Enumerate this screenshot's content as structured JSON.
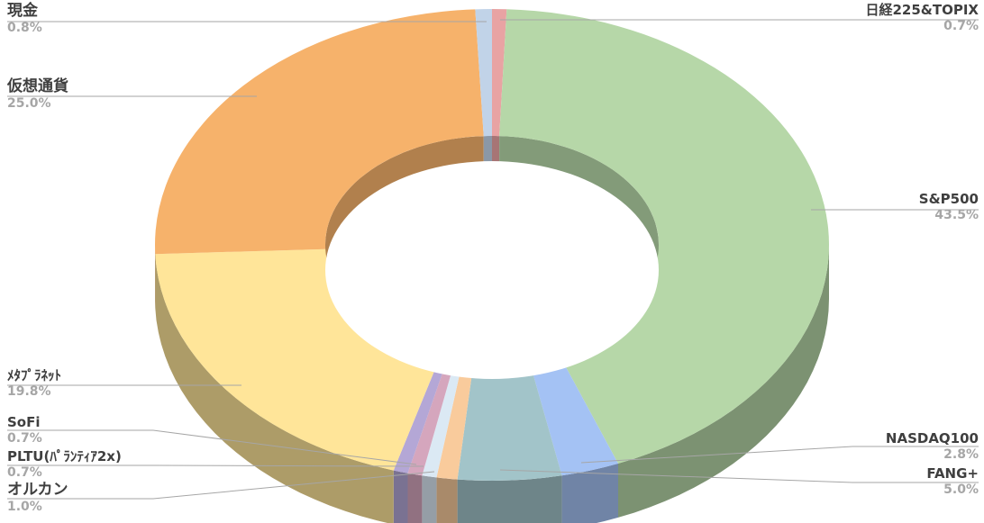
{
  "chart_data": {
    "type": "pie",
    "variant": "doughnut-3d",
    "title": "",
    "legend": "none",
    "slices": [
      {
        "label": "日経225&TOPIX",
        "percent_label": "0.7%",
        "value": 0.7,
        "color": "#e8a3a3"
      },
      {
        "label": "S&P500",
        "percent_label": "43.5%",
        "value": 43.5,
        "color": "#b6d7a8"
      },
      {
        "label": "NASDAQ100",
        "percent_label": "2.8%",
        "value": 2.8,
        "color": "#a4c2f4"
      },
      {
        "label": "FANG+",
        "percent_label": "5.0%",
        "value": 5.0,
        "color": "#a2c4c9"
      },
      {
        "label": "オルカン",
        "percent_label": "1.0%",
        "value": 1.0,
        "color": "#f9cb9c"
      },
      {
        "label": "PLTU(ﾊﾟﾗﾝﾃｨｱ2x)",
        "percent_label": "0.7%",
        "value": 0.7,
        "color": "#dbe9f4"
      },
      {
        "label": "SoFi",
        "percent_label": "0.7%",
        "value": 0.7,
        "color": "#d5a6bd"
      },
      {
        "label": "",
        "percent_label": "",
        "value": 0.7,
        "color": "#b4a7d6"
      },
      {
        "label": "ﾒﾀﾌﾟﾗﾈｯﾄ",
        "percent_label": "19.8%",
        "value": 19.8,
        "color": "#ffe599"
      },
      {
        "label": "仮想通貨",
        "percent_label": "25.0%",
        "value": 25.0,
        "color": "#f6b26b"
      },
      {
        "label": "現金",
        "percent_label": "0.8%",
        "value": 0.8,
        "color": "#c1d3e8"
      }
    ]
  }
}
